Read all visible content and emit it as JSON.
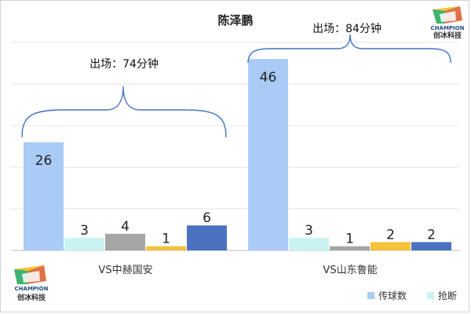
{
  "chart_data": {
    "type": "bar",
    "title": "陈泽鹏",
    "categories": [
      "VS中赫国安",
      "VS山东鲁能"
    ],
    "series": [
      {
        "name": "传球数",
        "values": [
          26,
          46
        ],
        "color": "#a9cbf5"
      },
      {
        "name": "抢断",
        "values": [
          3,
          3
        ],
        "color": "#c9f3f1"
      },
      {
        "name": "",
        "values": [
          4,
          1
        ],
        "color": "#a5a5a5"
      },
      {
        "name": "",
        "values": [
          1,
          2
        ],
        "color": "#f6c23b"
      },
      {
        "name": "",
        "values": [
          6,
          2
        ],
        "color": "#4a72c0"
      }
    ],
    "ylim": [
      0,
      50
    ],
    "grid": true,
    "legend_position": "bottom-right",
    "annotations": [
      "出场：74分钟",
      "出场：84分钟"
    ]
  },
  "logo": {
    "brand": "CHAMPION",
    "chinese": "创冰科技"
  }
}
